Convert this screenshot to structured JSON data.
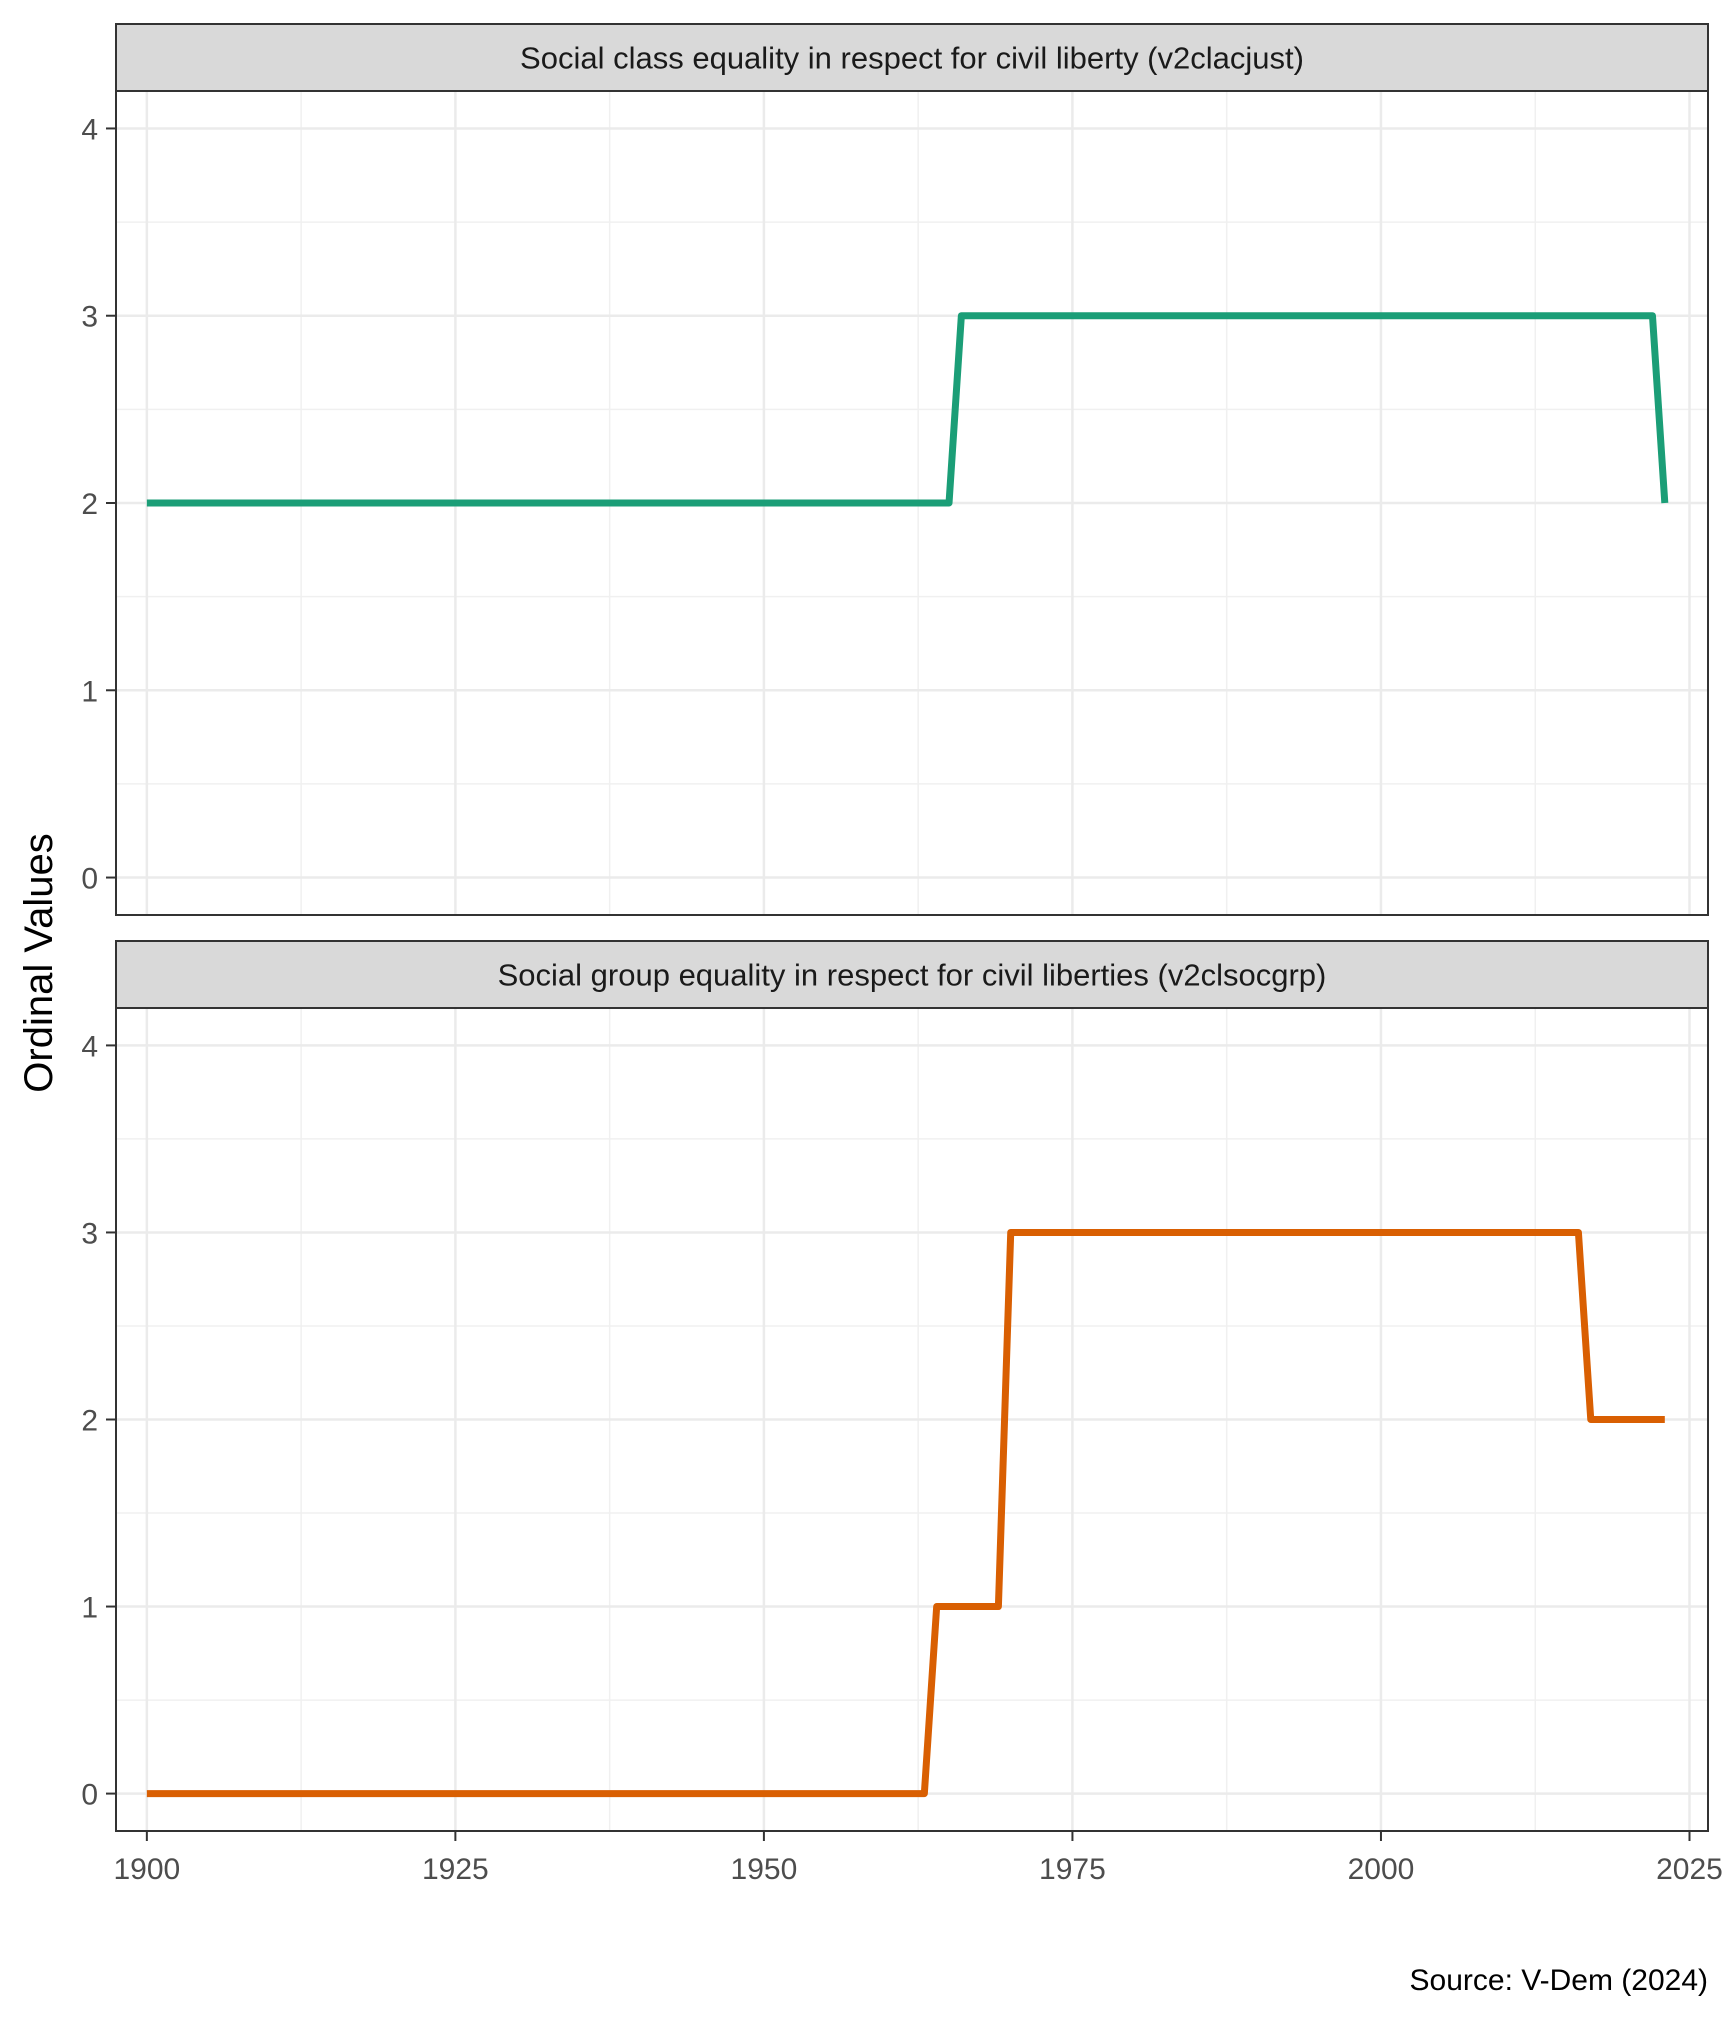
{
  "chart_data": [
    {
      "type": "line",
      "title": "Social class equality in respect for civil liberty (v2clacjust)",
      "ylabel": "Ordinal Values",
      "xlim": [
        1897.5,
        2026.5
      ],
      "ylim": [
        -0.2,
        4.2
      ],
      "x_ticks": [
        1900,
        1925,
        1950,
        1975,
        2000,
        2025
      ],
      "y_ticks": [
        0,
        1,
        2,
        3,
        4
      ],
      "grid": true,
      "color": "#1b9e77",
      "series": [
        {
          "x": [
            1900,
            1965,
            1966,
            2022,
            2023
          ],
          "y": [
            2,
            2,
            3,
            3,
            2
          ]
        }
      ]
    },
    {
      "type": "line",
      "title": "Social group equality in respect for civil liberties (v2clsocgrp)",
      "ylabel": "Ordinal Values",
      "xlim": [
        1897.5,
        2026.5
      ],
      "ylim": [
        -0.2,
        4.2
      ],
      "x_ticks": [
        1900,
        1925,
        1950,
        1975,
        2000,
        2025
      ],
      "y_ticks": [
        0,
        1,
        2,
        3,
        4
      ],
      "grid": true,
      "color": "#d95f02",
      "series": [
        {
          "x": [
            1900,
            1963,
            1964,
            1969,
            1970,
            2016,
            2017,
            2023
          ],
          "y": [
            0,
            0,
            1,
            1,
            3,
            3,
            2,
            2
          ]
        }
      ]
    }
  ],
  "ylabel": "Ordinal Values",
  "caption": "Source: V-Dem (2024)"
}
